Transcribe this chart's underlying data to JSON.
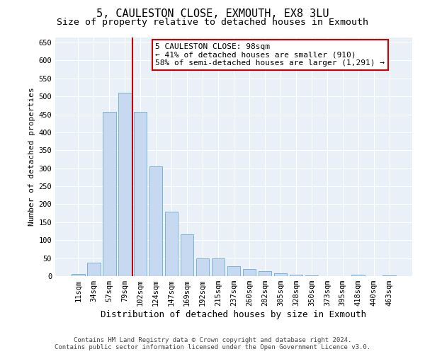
{
  "title1": "5, CAULESTON CLOSE, EXMOUTH, EX8 3LU",
  "title2": "Size of property relative to detached houses in Exmouth",
  "xlabel": "Distribution of detached houses by size in Exmouth",
  "ylabel": "Number of detached properties",
  "categories": [
    "11sqm",
    "34sqm",
    "57sqm",
    "79sqm",
    "102sqm",
    "124sqm",
    "147sqm",
    "169sqm",
    "192sqm",
    "215sqm",
    "237sqm",
    "260sqm",
    "282sqm",
    "305sqm",
    "328sqm",
    "350sqm",
    "373sqm",
    "395sqm",
    "418sqm",
    "440sqm",
    "463sqm"
  ],
  "values": [
    5,
    37,
    457,
    511,
    457,
    305,
    180,
    117,
    50,
    50,
    27,
    20,
    14,
    8,
    4,
    1,
    0,
    0,
    3,
    0,
    2
  ],
  "bar_color": "#c6d9f0",
  "bar_edgecolor": "#6aaad4",
  "vline_color": "#cc0000",
  "vline_x_index": 4,
  "annotation_text": "5 CAULESTON CLOSE: 98sqm\n← 41% of detached houses are smaller (910)\n58% of semi-detached houses are larger (1,291) →",
  "annotation_box_color": "#ffffff",
  "annotation_box_edgecolor": "#cc0000",
  "ylim": [
    0,
    665
  ],
  "yticks": [
    0,
    50,
    100,
    150,
    200,
    250,
    300,
    350,
    400,
    450,
    500,
    550,
    600,
    650
  ],
  "bg_color": "#eaf0f8",
  "footer1": "Contains HM Land Registry data © Crown copyright and database right 2024.",
  "footer2": "Contains public sector information licensed under the Open Government Licence v3.0.",
  "title1_fontsize": 11,
  "title2_fontsize": 9.5,
  "xlabel_fontsize": 9,
  "ylabel_fontsize": 8,
  "tick_fontsize": 7.5,
  "annotation_fontsize": 8,
  "footer_fontsize": 6.5
}
